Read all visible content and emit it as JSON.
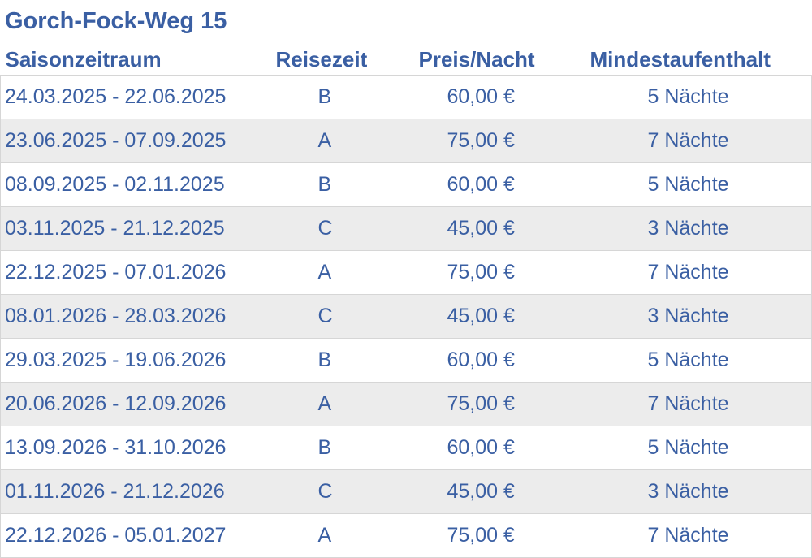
{
  "title": "Gorch-Fock-Weg 15",
  "columns": [
    "Saisonzeitraum",
    "Reisezeit",
    "Preis/Nacht",
    "Mindestaufenthalt"
  ],
  "rows": [
    [
      "24.03.2025 - 22.06.2025",
      "B",
      "60,00 €",
      "5 Nächte"
    ],
    [
      "23.06.2025 - 07.09.2025",
      "A",
      "75,00 €",
      "7 Nächte"
    ],
    [
      "08.09.2025 - 02.11.2025",
      "B",
      "60,00 €",
      "5 Nächte"
    ],
    [
      "03.11.2025 - 21.12.2025",
      "C",
      "45,00 €",
      "3 Nächte"
    ],
    [
      "22.12.2025 - 07.01.2026",
      "A",
      "75,00 €",
      "7 Nächte"
    ],
    [
      "08.01.2026 - 28.03.2026",
      "C",
      "45,00 €",
      "3 Nächte"
    ],
    [
      "29.03.2025 - 19.06.2026",
      "B",
      "60,00 €",
      "5 Nächte"
    ],
    [
      "20.06.2026 - 12.09.2026",
      "A",
      "75,00 €",
      "7 Nächte"
    ],
    [
      "13.09.2026 - 31.10.2026",
      "B",
      "60,00 €",
      "5 Nächte"
    ],
    [
      "01.11.2026 - 21.12.2026",
      "C",
      "45,00 €",
      "3 Nächte"
    ],
    [
      "22.12.2026 - 05.01.2027",
      "A",
      "75,00 €",
      "7 Nächte"
    ]
  ],
  "colors": {
    "text": "#3a5fa3",
    "row_alt": "#ececec",
    "border": "#d6d6d6"
  }
}
